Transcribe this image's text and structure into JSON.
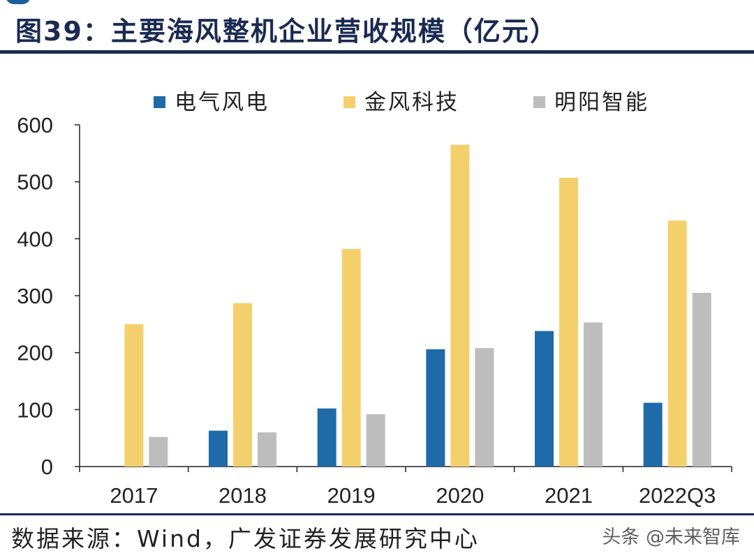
{
  "header": {
    "title": "图39：主要海风整机企业营收规模（亿元）"
  },
  "footer": {
    "source": "数据来源：Wind，广发证券发展研究中心",
    "watermark": "头条 @未来智库"
  },
  "chart_data": {
    "type": "bar",
    "title": "主要海风整机企业营收规模（亿元）",
    "xlabel": "",
    "ylabel": "",
    "ylim": [
      0,
      600
    ],
    "yticks": [
      0,
      100,
      200,
      300,
      400,
      500,
      600
    ],
    "categories": [
      "2017",
      "2018",
      "2019",
      "2020",
      "2021",
      "2022Q3"
    ],
    "legend_position": "top",
    "grid": false,
    "series": [
      {
        "name": "电气风电",
        "color": "#1f6aa9",
        "values": [
          0,
          63,
          102,
          206,
          238,
          112
        ]
      },
      {
        "name": "金风科技",
        "color": "#f4d06c",
        "values": [
          250,
          287,
          382,
          565,
          507,
          432
        ]
      },
      {
        "name": "明阳智能",
        "color": "#bdbdbd",
        "values": [
          52,
          60,
          92,
          208,
          253,
          305
        ]
      }
    ]
  }
}
